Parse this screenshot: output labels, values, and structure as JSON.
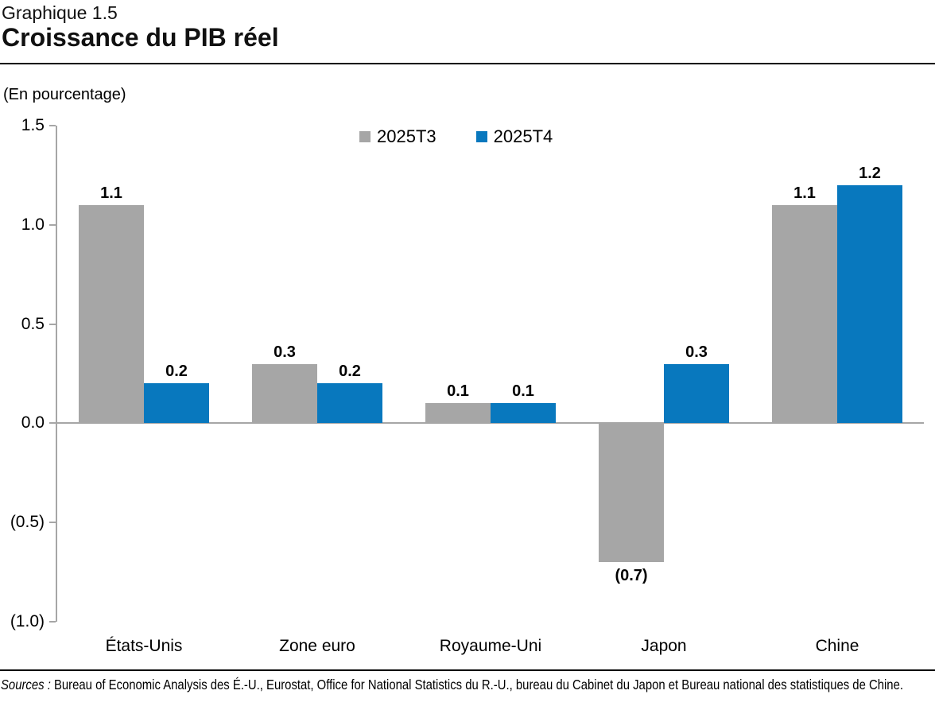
{
  "header": {
    "chart_number": "Graphique 1.5",
    "title": "Croissance du PIB réel"
  },
  "chart_data": {
    "type": "bar",
    "title": "Croissance du PIB réel",
    "ylabel": "(En pourcentage)",
    "categories": [
      "États-Unis",
      "Zone euro",
      "Royaume-Uni",
      "Japon",
      "Chine"
    ],
    "series": [
      {
        "name": "2025T3",
        "color": "#A6A6A6",
        "values": [
          1.1,
          0.3,
          0.1,
          -0.7,
          1.1
        ],
        "value_labels": [
          "1.1",
          "0.3",
          "0.1",
          "(0.7)",
          "1.1"
        ]
      },
      {
        "name": "2025T4",
        "color": "#0878BE",
        "values": [
          0.2,
          0.2,
          0.1,
          0.3,
          1.2
        ],
        "value_labels": [
          "0.2",
          "0.2",
          "0.1",
          "0.3",
          "1.2"
        ]
      }
    ],
    "ylim": [
      -1.0,
      1.5
    ],
    "yticks": [
      1.5,
      1.0,
      0.5,
      0.0,
      -0.5,
      -1.0
    ],
    "ytick_labels": [
      "1.5",
      "1.0",
      "0.5",
      "0.0",
      "(0.5)",
      "(1.0)"
    ],
    "grid": false,
    "legend_position": "top-center",
    "axis_color": "#A6A6A6"
  },
  "source_note": {
    "prefix": "Sources :",
    "text": " Bureau of Economic Analysis des É.-U., Eurostat, Office for National Statistics du R.-U., bureau du Cabinet du Japon et Bureau national des statistiques de Chine."
  }
}
